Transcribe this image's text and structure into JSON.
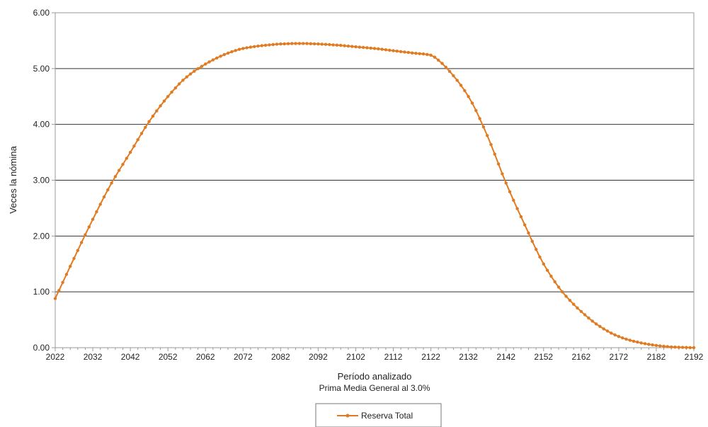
{
  "colors": {
    "series": "#E07B22",
    "grid": "#333333",
    "frame": "#999999",
    "text": "#222222"
  },
  "chart_data": {
    "type": "line",
    "xlabel": "Período analizado",
    "subtitle": "Prima Media General al 3.0%",
    "ylabel": "Veces la nómina",
    "xlim": [
      2022,
      2192
    ],
    "ylim": [
      0,
      6
    ],
    "x_ticks": [
      "2022",
      "2032",
      "2042",
      "2052",
      "2062",
      "2072",
      "2082",
      "2092",
      "2102",
      "2112",
      "2122",
      "2132",
      "2142",
      "2152",
      "2162",
      "2172",
      "2182",
      "2192"
    ],
    "y_ticks": [
      "0.00",
      "1.00",
      "2.00",
      "3.00",
      "4.00",
      "5.00",
      "6.00"
    ],
    "grid": "horizontal",
    "legend_position": "bottom",
    "series": [
      {
        "name": "Reserva Total",
        "marker": "dot",
        "x": [
          2022,
          2027,
          2032,
          2037,
          2042,
          2047,
          2052,
          2057,
          2062,
          2067,
          2072,
          2077,
          2082,
          2087,
          2092,
          2097,
          2102,
          2107,
          2112,
          2117,
          2122,
          2124,
          2127,
          2132,
          2137,
          2142,
          2147,
          2152,
          2157,
          2162,
          2167,
          2172,
          2177,
          2182,
          2187,
          2192
        ],
        "values": [
          0.88,
          1.6,
          2.3,
          2.95,
          3.5,
          4.05,
          4.5,
          4.85,
          5.08,
          5.25,
          5.36,
          5.41,
          5.44,
          5.45,
          5.44,
          5.42,
          5.39,
          5.36,
          5.32,
          5.28,
          5.24,
          5.15,
          4.95,
          4.5,
          3.8,
          2.95,
          2.2,
          1.5,
          1.0,
          0.65,
          0.38,
          0.2,
          0.1,
          0.04,
          0.01,
          0.0
        ]
      }
    ]
  }
}
